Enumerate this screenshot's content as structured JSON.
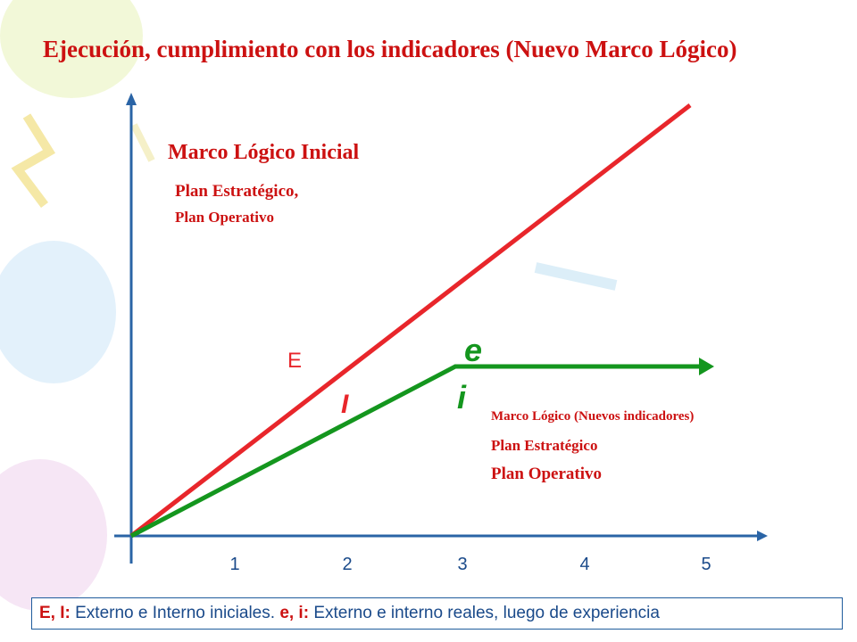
{
  "title": "Ejecución, cumplimiento con los indicadores (Nuevo Marco Lógico)",
  "initial": {
    "heading": "Marco Lógico Inicial",
    "line1": "Plan Estratégico,",
    "line2": "Plan Operativo"
  },
  "new": {
    "heading": "Marco Lógico (Nuevos indicadores)",
    "line1": "Plan Estratégico",
    "line2": "Plan Operativo"
  },
  "line_labels": {
    "E": "E",
    "I": "I",
    "e": "e",
    "i": "i"
  },
  "x_ticks": [
    "1",
    "2",
    "3",
    "4",
    "5"
  ],
  "footer": {
    "key1": "E, I:",
    "text1": " Externo e Interno iniciales. ",
    "key2": "e, i:",
    "text2": " Externo e interno reales, luego de experiencia"
  },
  "colors": {
    "red": "#e8262b",
    "green": "#14961e",
    "axis": "#2a64a6",
    "label_red": "#cc1111",
    "label_blue": "#1a4a8a"
  }
}
